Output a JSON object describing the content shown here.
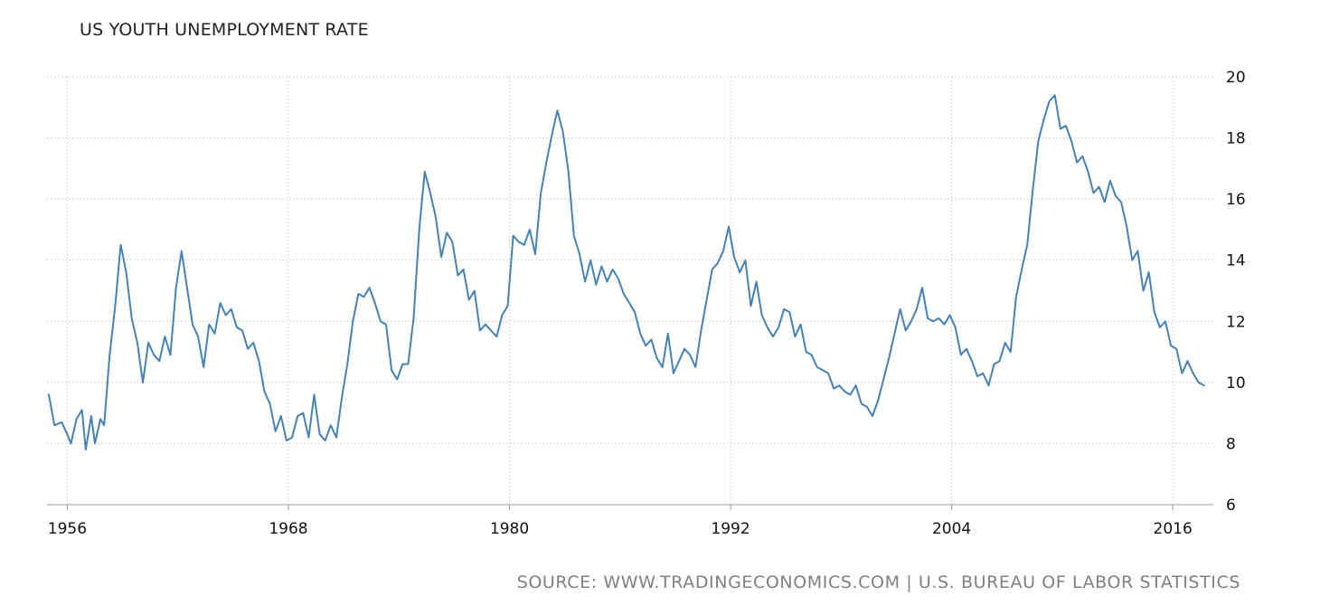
{
  "chart_data": {
    "type": "line",
    "title": "US YOUTH UNEMPLOYMENT RATE",
    "xlabel": "",
    "ylabel": "",
    "xlim": [
      1954.9,
      2018.2
    ],
    "ylim": [
      6,
      20
    ],
    "x_ticks": [
      1956,
      1968,
      1980,
      1992,
      2004,
      2016
    ],
    "y_ticks": [
      6,
      8,
      10,
      12,
      14,
      16,
      18,
      20
    ],
    "grid": true,
    "legend": "none",
    "line_color": "#4682b4",
    "series": [
      {
        "x": [
          1955.0,
          1955.3,
          1955.7,
          1956.0,
          1956.2,
          1956.5,
          1956.8,
          1957.0,
          1957.3,
          1957.5,
          1957.8,
          1958.0,
          1958.3,
          1958.6,
          1958.9,
          1959.2,
          1959.5,
          1959.8,
          1960.1,
          1960.4,
          1960.7,
          1961.0,
          1961.3,
          1961.6,
          1961.9,
          1962.2,
          1962.5,
          1962.8,
          1963.1,
          1963.4,
          1963.7,
          1964.0,
          1964.3,
          1964.6,
          1964.9,
          1965.2,
          1965.5,
          1965.8,
          1966.1,
          1966.4,
          1966.7,
          1967.0,
          1967.3,
          1967.6,
          1967.9,
          1968.2,
          1968.5,
          1968.8,
          1969.1,
          1969.4,
          1969.7,
          1970.0,
          1970.3,
          1970.6,
          1970.9,
          1971.2,
          1971.5,
          1971.8,
          1972.1,
          1972.4,
          1972.7,
          1973.0,
          1973.3,
          1973.6,
          1973.9,
          1974.2,
          1974.5,
          1974.8,
          1975.1,
          1975.4,
          1975.7,
          1976.0,
          1976.3,
          1976.6,
          1976.9,
          1977.2,
          1977.5,
          1977.8,
          1978.1,
          1978.4,
          1978.7,
          1979.0,
          1979.3,
          1979.6,
          1979.9,
          1980.2,
          1980.5,
          1980.8,
          1981.1,
          1981.4,
          1981.7,
          1982.0,
          1982.3,
          1982.6,
          1982.9,
          1983.2,
          1983.5,
          1983.8,
          1984.1,
          1984.4,
          1984.7,
          1985.0,
          1985.3,
          1985.6,
          1985.9,
          1986.2,
          1986.5,
          1986.8,
          1987.1,
          1987.4,
          1987.7,
          1988.0,
          1988.3,
          1988.6,
          1988.9,
          1989.2,
          1989.5,
          1989.8,
          1990.1,
          1990.4,
          1990.7,
          1991.0,
          1991.3,
          1991.6,
          1991.9,
          1992.2,
          1992.5,
          1992.8,
          1993.1,
          1993.4,
          1993.7,
          1994.0,
          1994.3,
          1994.6,
          1994.9,
          1995.2,
          1995.5,
          1995.8,
          1996.1,
          1996.4,
          1996.7,
          1997.0,
          1997.3,
          1997.6,
          1997.9,
          1998.2,
          1998.5,
          1998.8,
          1999.1,
          1999.4,
          1999.7,
          2000.0,
          2000.3,
          2000.6,
          2000.9,
          2001.2,
          2001.5,
          2001.8,
          2002.1,
          2002.4,
          2002.7,
          2003.0,
          2003.3,
          2003.6,
          2003.9,
          2004.2,
          2004.5,
          2004.8,
          2005.1,
          2005.4,
          2005.7,
          2006.0,
          2006.3,
          2006.6,
          2006.9,
          2007.2,
          2007.5,
          2007.8,
          2008.1,
          2008.4,
          2008.7,
          2009.0,
          2009.3,
          2009.6,
          2009.9,
          2010.2,
          2010.5,
          2010.8,
          2011.1,
          2011.4,
          2011.7,
          2012.0,
          2012.3,
          2012.6,
          2012.9,
          2013.2,
          2013.5,
          2013.8,
          2014.1,
          2014.4,
          2014.7,
          2015.0,
          2015.3,
          2015.6,
          2015.9,
          2016.2,
          2016.5,
          2016.8,
          2017.1,
          2017.4,
          2017.7
        ],
        "y": [
          9.6,
          8.6,
          8.7,
          8.3,
          8.0,
          8.8,
          9.1,
          7.8,
          8.9,
          8.0,
          8.8,
          8.6,
          10.9,
          12.5,
          14.5,
          13.6,
          12.1,
          11.3,
          10.0,
          11.3,
          10.9,
          10.7,
          11.5,
          10.9,
          13.1,
          14.3,
          13.1,
          11.9,
          11.5,
          10.5,
          11.9,
          11.6,
          12.6,
          12.2,
          12.4,
          11.8,
          11.7,
          11.1,
          11.3,
          10.7,
          9.7,
          9.3,
          8.4,
          8.9,
          8.1,
          8.2,
          8.9,
          9.0,
          8.2,
          9.6,
          8.3,
          8.1,
          8.6,
          8.2,
          9.5,
          10.6,
          12.0,
          12.9,
          12.8,
          13.1,
          12.6,
          12.0,
          11.9,
          10.4,
          10.1,
          10.6,
          10.6,
          12.1,
          15.0,
          16.9,
          16.2,
          15.4,
          14.1,
          14.9,
          14.6,
          13.5,
          13.7,
          12.7,
          13.0,
          11.7,
          11.9,
          11.7,
          11.5,
          12.2,
          12.5,
          14.8,
          14.6,
          14.5,
          15.0,
          14.2,
          16.2,
          17.2,
          18.1,
          18.9,
          18.2,
          16.9,
          14.8,
          14.2,
          13.3,
          14.0,
          13.2,
          13.8,
          13.3,
          13.7,
          13.4,
          12.9,
          12.6,
          12.3,
          11.6,
          11.2,
          11.4,
          10.8,
          10.5,
          11.6,
          10.3,
          10.7,
          11.1,
          10.9,
          10.5,
          11.7,
          12.7,
          13.7,
          13.9,
          14.3,
          15.1,
          14.1,
          13.6,
          14.0,
          12.5,
          13.3,
          12.2,
          11.8,
          11.5,
          11.8,
          12.4,
          12.3,
          11.5,
          11.9,
          11.0,
          10.9,
          10.5,
          10.4,
          10.3,
          9.8,
          9.9,
          9.7,
          9.6,
          9.9,
          9.3,
          9.2,
          8.9,
          9.4,
          10.1,
          10.8,
          11.6,
          12.4,
          11.7,
          12.0,
          12.4,
          13.1,
          12.1,
          12.0,
          12.1,
          11.9,
          12.2,
          11.8,
          10.9,
          11.1,
          10.7,
          10.2,
          10.3,
          9.9,
          10.6,
          10.7,
          11.3,
          11.0,
          12.8,
          13.7,
          14.5,
          16.3,
          17.9,
          18.6,
          19.2,
          19.4,
          18.3,
          18.4,
          17.9,
          17.2,
          17.4,
          16.9,
          16.2,
          16.4,
          15.9,
          16.6,
          16.1,
          15.9,
          15.1,
          14.0,
          14.3,
          13.0,
          13.6,
          12.3,
          11.8,
          12.0,
          11.2,
          11.1,
          10.3,
          10.7,
          10.3,
          10.0,
          9.9
        ]
      }
    ],
    "source": "SOURCE: WWW.TRADINGECONOMICS.COM | U.S. BUREAU OF LABOR STATISTICS"
  }
}
